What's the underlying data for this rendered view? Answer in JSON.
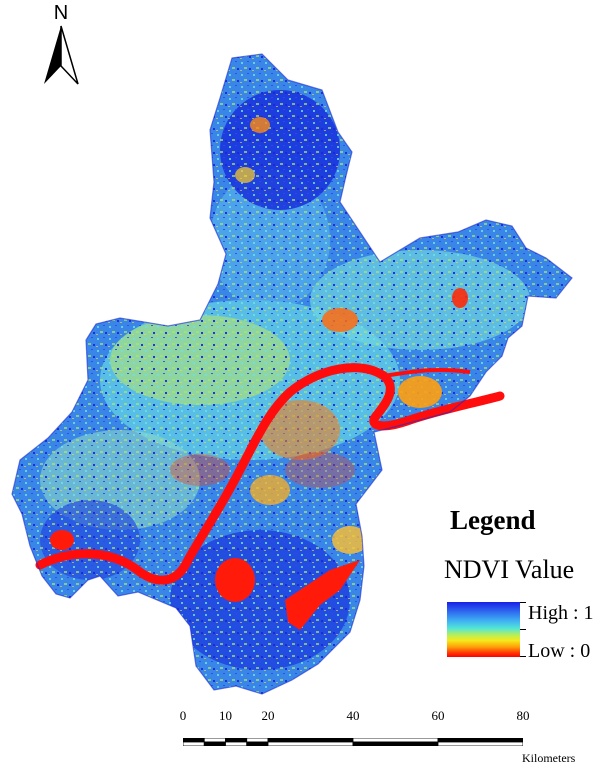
{
  "north_arrow": {
    "label": "N"
  },
  "legend": {
    "title": "Legend",
    "subtitle": "NDVI Value",
    "high_label": "High : 1",
    "low_label": "Low : 0",
    "ramp_colors": [
      "#1a1ee6",
      "#3fb0f2",
      "#52e6d6",
      "#f6ea1a",
      "#ff9c08",
      "#ff0000"
    ]
  },
  "scale_bar": {
    "ticks": [
      "0",
      "10",
      "20",
      "40",
      "60",
      "80"
    ],
    "tick_values": [
      0,
      10,
      20,
      40,
      60,
      80
    ],
    "units": "Kilometers"
  },
  "colors": {
    "high_ndvi": "#1a35e0",
    "mid_ndvi": "#4ad2e6",
    "low_mid_ndvi": "#d6ea3a",
    "low_ndvi": "#ff1a0a",
    "river": "#ff0d0d"
  }
}
